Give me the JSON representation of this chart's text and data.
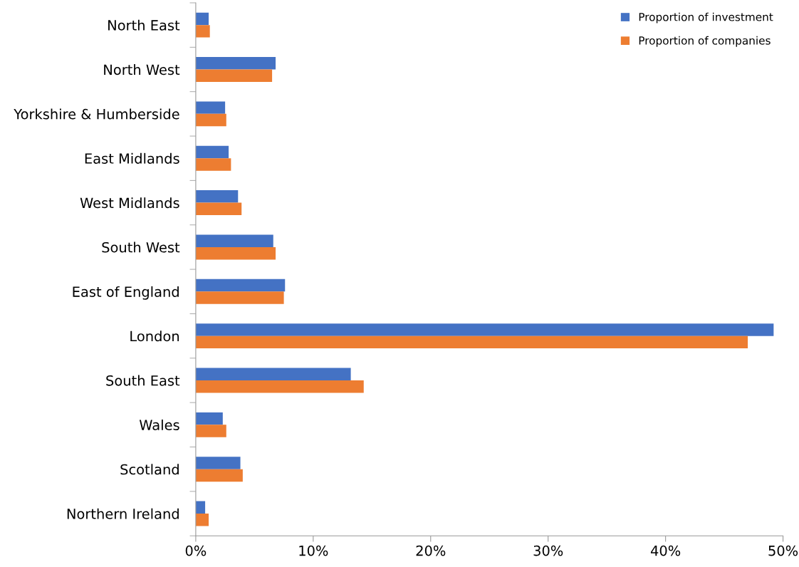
{
  "chart_data": {
    "type": "bar",
    "orientation": "horizontal",
    "categories": [
      "North East",
      "North West",
      "Yorkshire & Humberside",
      "East Midlands",
      "West Midlands",
      "South West",
      "East of England",
      "London",
      "South East",
      "Wales",
      "Scotland",
      "Northern Ireland"
    ],
    "series": [
      {
        "name": "Proportion of investment",
        "color": "#4472c4",
        "values": [
          1.1,
          6.8,
          2.5,
          2.8,
          3.6,
          6.6,
          7.6,
          49.2,
          13.2,
          2.3,
          3.8,
          0.8
        ]
      },
      {
        "name": "Proportion of companies",
        "color": "#ed7d31",
        "values": [
          1.2,
          6.5,
          2.6,
          3.0,
          3.9,
          6.8,
          7.5,
          47.0,
          14.3,
          2.6,
          4.0,
          1.1
        ]
      }
    ],
    "xlim": [
      0,
      50
    ],
    "xticks": [
      {
        "value": 0,
        "label": "0%"
      },
      {
        "value": 10,
        "label": "10%"
      },
      {
        "value": 20,
        "label": "20%"
      },
      {
        "value": 30,
        "label": "30%"
      },
      {
        "value": 40,
        "label": "40%"
      },
      {
        "value": 50,
        "label": "50%"
      }
    ],
    "grid": false,
    "legend": "top right"
  }
}
